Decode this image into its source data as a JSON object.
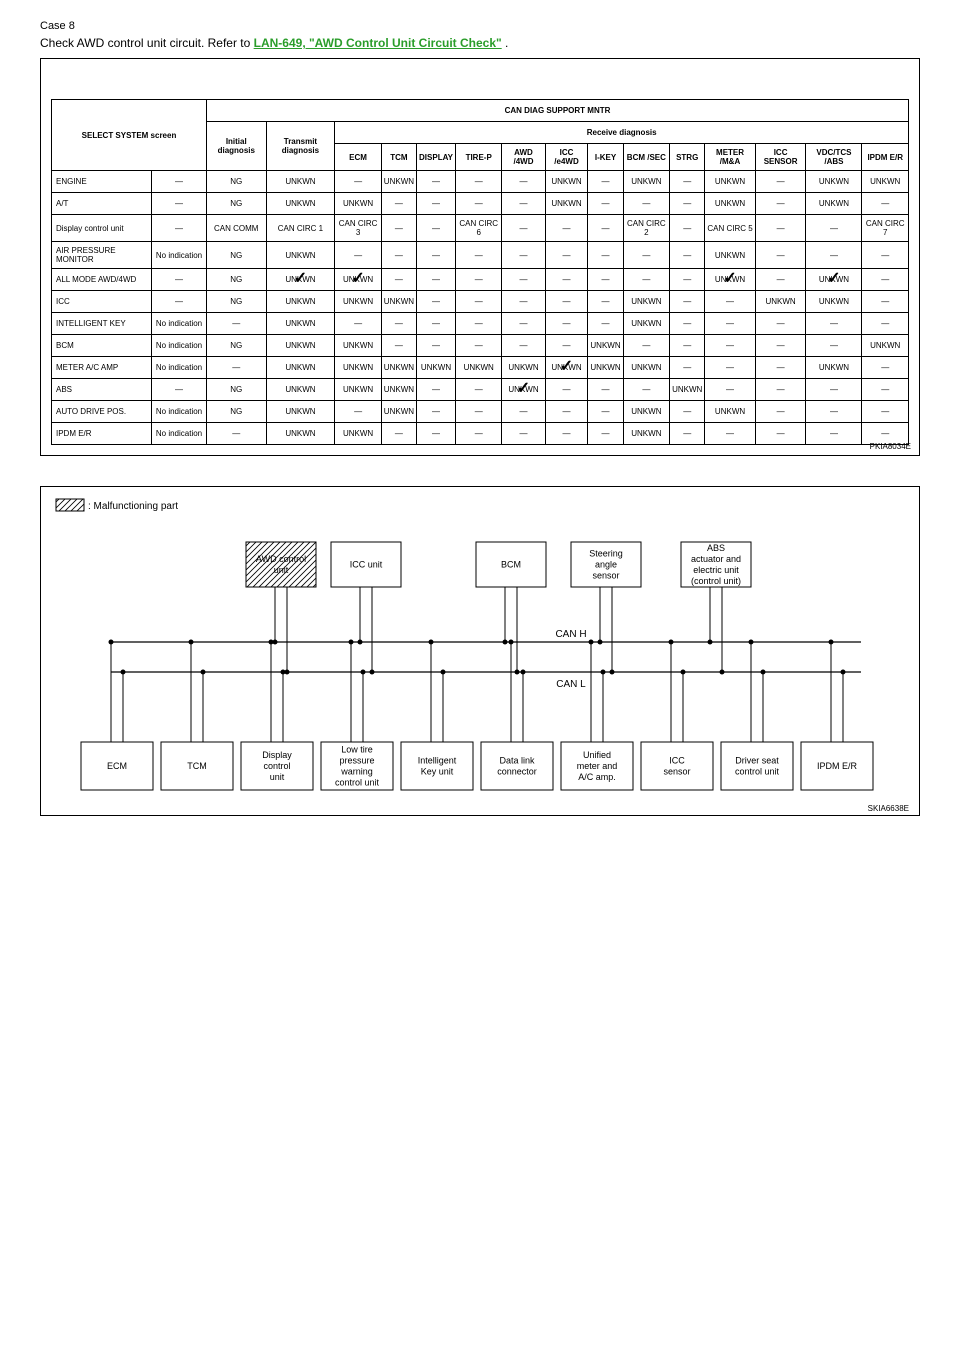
{
  "case": {
    "title": "Case 8",
    "text_prefix": "Check AWD control unit circuit. Refer to ",
    "link": "LAN-649, \"AWD Control Unit Circuit Check\"",
    "text_suffix": " ."
  },
  "table": {
    "header_top": "CAN DIAG SUPPORT MNTR",
    "header_select": "SELECT SYSTEM screen",
    "header_initial": "Initial diagnosis",
    "header_transmit": "Transmit diagnosis",
    "header_receive": "Receive diagnosis",
    "cols": [
      "ECM",
      "TCM",
      "DISPLAY",
      "TIRE-P",
      "AWD /4WD",
      "ICC /e4WD",
      "I-KEY",
      "BCM /SEC",
      "STRG",
      "METER /M&A",
      "ICC SENSOR",
      "VDC/TCS /ABS",
      "IPDM E/R"
    ],
    "rows": [
      {
        "sys": "ENGINE",
        "ind": "—",
        "init": "NG",
        "tx": "UNKWN",
        "cells": [
          "—",
          "UNKWN",
          "—",
          "—",
          "—",
          "UNKWN",
          "—",
          "UNKWN",
          "—",
          "UNKWN",
          "—",
          "UNKWN",
          "UNKWN"
        ],
        "checks": []
      },
      {
        "sys": "A/T",
        "ind": "—",
        "init": "NG",
        "tx": "UNKWN",
        "cells": [
          "UNKWN",
          "—",
          "—",
          "—",
          "—",
          "UNKWN",
          "—",
          "—",
          "—",
          "UNKWN",
          "—",
          "UNKWN",
          "—"
        ],
        "checks": []
      },
      {
        "sys": "Display control unit",
        "ind": "—",
        "init": "CAN COMM",
        "tx": "CAN CIRC 1",
        "cells": [
          "CAN CIRC 3",
          "—",
          "—",
          "CAN CIRC 6",
          "—",
          "—",
          "—",
          "CAN CIRC 2",
          "—",
          "CAN CIRC 5",
          "—",
          "—",
          "CAN CIRC 7"
        ],
        "checks": []
      },
      {
        "sys": "AIR PRESSURE MONITOR",
        "ind": "No indication",
        "init": "NG",
        "tx": "UNKWN",
        "cells": [
          "—",
          "—",
          "—",
          "—",
          "—",
          "—",
          "—",
          "—",
          "—",
          "UNKWN",
          "—",
          "—",
          "—"
        ],
        "checks": []
      },
      {
        "sys": "ALL MODE AWD/4WD",
        "ind": "—",
        "init": "NG",
        "tx": "UNKWN",
        "cells": [
          "UNKWN",
          "—",
          "—",
          "—",
          "—",
          "—",
          "—",
          "—",
          "—",
          "UNKWN",
          "—",
          "UNKWN",
          "—"
        ],
        "checks": [
          0,
          1,
          10,
          12
        ]
      },
      {
        "sys": "ICC",
        "ind": "—",
        "init": "NG",
        "tx": "UNKWN",
        "cells": [
          "UNKWN",
          "UNKWN",
          "—",
          "—",
          "—",
          "—",
          "—",
          "UNKWN",
          "—",
          "—",
          "UNKWN",
          "UNKWN",
          "—"
        ],
        "checks": []
      },
      {
        "sys": "INTELLIGENT KEY",
        "ind": "No indication",
        "init": "—",
        "tx": "UNKWN",
        "cells": [
          "—",
          "—",
          "—",
          "—",
          "—",
          "—",
          "—",
          "UNKWN",
          "—",
          "—",
          "—",
          "—",
          "—"
        ],
        "checks": []
      },
      {
        "sys": "BCM",
        "ind": "No indication",
        "init": "NG",
        "tx": "UNKWN",
        "cells": [
          "UNKWN",
          "—",
          "—",
          "—",
          "—",
          "—",
          "UNKWN",
          "—",
          "—",
          "—",
          "—",
          "—",
          "UNKWN"
        ],
        "checks": []
      },
      {
        "sys": "METER A/C AMP",
        "ind": "No indication",
        "init": "—",
        "tx": "UNKWN",
        "cells": [
          "UNKWN",
          "UNKWN",
          "UNKWN",
          "UNKWN",
          "UNKWN",
          "UNKWN",
          "UNKWN",
          "UNKWN",
          "—",
          "—",
          "—",
          "UNKWN",
          "—"
        ],
        "checks": [
          6
        ]
      },
      {
        "sys": "ABS",
        "ind": "—",
        "init": "NG",
        "tx": "UNKWN",
        "cells": [
          "UNKWN",
          "UNKWN",
          "—",
          "—",
          "UNKWN",
          "—",
          "—",
          "—",
          "UNKWN",
          "—",
          "—",
          "—",
          "—"
        ],
        "checks": [
          5
        ]
      },
      {
        "sys": "AUTO DRIVE POS.",
        "ind": "No indication",
        "init": "NG",
        "tx": "UNKWN",
        "cells": [
          "—",
          "UNKWN",
          "—",
          "—",
          "—",
          "—",
          "—",
          "UNKWN",
          "—",
          "UNKWN",
          "—",
          "—",
          "—"
        ],
        "checks": []
      },
      {
        "sys": "IPDM E/R",
        "ind": "No indication",
        "init": "—",
        "tx": "UNKWN",
        "cells": [
          "UNKWN",
          "—",
          "—",
          "—",
          "—",
          "—",
          "—",
          "UNKWN",
          "—",
          "—",
          "—",
          "—",
          "—"
        ],
        "checks": []
      }
    ],
    "fig_id": "PKIA8034E"
  },
  "diagram": {
    "legend": ": Malfunctioning part",
    "can_h": "CAN H",
    "can_l": "CAN L",
    "top_boxes": [
      {
        "label": [
          "AWD control",
          "unit"
        ],
        "hatched": true
      },
      {
        "label": [
          "ICC unit"
        ],
        "hatched": false
      },
      {
        "label": [
          "BCM"
        ],
        "hatched": false
      },
      {
        "label": [
          "Steering",
          "angle",
          "sensor"
        ],
        "hatched": false
      },
      {
        "label": [
          "ABS",
          "actuator and",
          "electric unit",
          "(control unit)"
        ],
        "hatched": false
      }
    ],
    "bottom_boxes": [
      {
        "label": [
          "ECM"
        ]
      },
      {
        "label": [
          "TCM"
        ]
      },
      {
        "label": [
          "Display",
          "control",
          "unit"
        ]
      },
      {
        "label": [
          "Low tire",
          "pressure",
          "warning",
          "control unit"
        ]
      },
      {
        "label": [
          "Intelligent",
          "Key unit"
        ]
      },
      {
        "label": [
          "Data link",
          "connector"
        ]
      },
      {
        "label": [
          "Unified",
          "meter and",
          "A/C amp."
        ]
      },
      {
        "label": [
          "ICC",
          "sensor"
        ]
      },
      {
        "label": [
          "Driver seat",
          "control unit"
        ]
      },
      {
        "label": [
          "IPDM E/R"
        ]
      }
    ],
    "fig_id": "SKIA6638E"
  }
}
